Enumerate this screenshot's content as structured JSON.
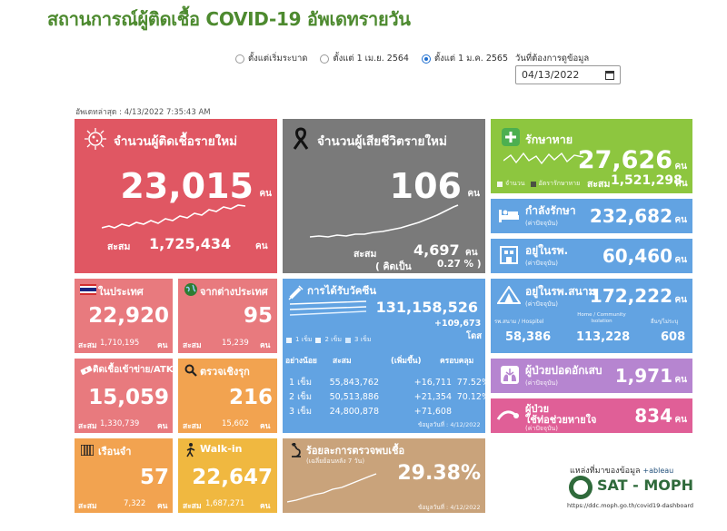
{
  "title": "สถานการณ์ผู้ติดเชื้อ COVID-19 อัพเดทรายวัน",
  "filters": {
    "options": [
      "ตั้งแต่เริ่มระบาด",
      "ตั้งแต่ 1 เม.ย. 2564",
      "ตั้งแต่ 1 ม.ค. 2565"
    ],
    "selected_index": 2,
    "date_label": "วันที่ต้องการดูข้อมูล",
    "date_value": "04/13/2022"
  },
  "updated": "อัพเดทล่าสุด : 4/13/2022 7:35:43 AM",
  "new_cases": {
    "label": "จำนวนผู้ติดเชื้อรายใหม่",
    "value": "23,015",
    "unit": "คน",
    "cum_label": "สะสม",
    "cum_value": "1,725,434",
    "cum_unit": "คน"
  },
  "new_deaths": {
    "label": "จำนวนผู้เสียชีวิตรายใหม่",
    "value": "106",
    "unit": "คน",
    "cum_label": "สะสม",
    "cum_value": "4,697",
    "cum_unit": "คน",
    "pct_prefix": "( คิดเป็น",
    "pct_value": "0.27 % )"
  },
  "recovered": {
    "label": "รักษาหาย",
    "value": "27,626",
    "unit": "คน",
    "legend_count": "จำนวน",
    "legend_rate": "อัตรารักษาหาย",
    "cum_label": "สะสม",
    "cum_value": "1,521,298",
    "cum_unit": "คน"
  },
  "treating": {
    "label": "กำลังรักษา",
    "sub": "(ค่าปัจจุบัน)",
    "value": "232,682",
    "unit": "คน"
  },
  "hospital": {
    "label": "อยู่ในรพ.",
    "sub": "(ค่าปัจจุบัน)",
    "value": "60,460",
    "unit": "คน"
  },
  "field_hospital": {
    "label": "อยู่ในรพ.สนาม",
    "sub": "(ค่าปัจจุบัน)",
    "value": "172,222",
    "unit": "คน",
    "col1_label": "รพ.สนาม / Hospitel",
    "col1_value": "58,386",
    "col2_label": "Home / Community Isolation",
    "col2_value": "113,228",
    "col3_label": "อื่นๆ/ไม่ระบุ",
    "col3_value": "608"
  },
  "severe": {
    "label": "ผู้ป่วยปอดอักเสบ",
    "sub": "(ค่าปัจจุบัน)",
    "value": "1,971",
    "unit": "คน"
  },
  "ventilator": {
    "label": "ผู้ป่วย",
    "label2": "ใช้ท่อช่วยหายใจ",
    "sub": "(ค่าปัจจุบัน)",
    "value": "834",
    "unit": "คน"
  },
  "domestic": {
    "label": "ในประเทศ",
    "value": "22,920",
    "cum_label": "สะสม",
    "cum_value": "1,710,195",
    "cum_unit": "คน"
  },
  "imported": {
    "label": "จากต่างประเทศ",
    "value": "95",
    "cum_label": "สะสม",
    "cum_value": "15,239",
    "cum_unit": "คน"
  },
  "atk": {
    "label": "ติดเชื้อเข้าข่าย/ATK",
    "value": "15,059",
    "cum_label": "สะสม",
    "cum_value": "1,330,739",
    "cum_unit": "คน"
  },
  "proactive": {
    "label": "ตรวจเชิงรุก",
    "value": "216",
    "cum_label": "สะสม",
    "cum_value": "15,602",
    "cum_unit": "คน"
  },
  "prison": {
    "label": "เรือนจำ",
    "value": "57",
    "cum_label": "สะสม",
    "cum_value": "7,322",
    "cum_unit": "คน"
  },
  "walkin": {
    "label": "Walk-in",
    "value": "22,647",
    "cum_label": "สะสม",
    "cum_value": "1,687,271",
    "cum_unit": "คน"
  },
  "vaccine": {
    "label": "การได้รับวัคซีน",
    "total": "131,158,526",
    "added": "+109,673",
    "unit": "โดส",
    "legend": [
      "1 เข็ม",
      "2 เข็ม",
      "3 เข็ม"
    ],
    "headers": [
      "อย่างน้อย",
      "สะสม",
      "(เพิ่มขึ้น)",
      "ครอบคลุม"
    ],
    "rows": [
      {
        "dose": "1 เข็ม",
        "cum": "55,843,762",
        "inc": "+16,711",
        "cov": "77.52%"
      },
      {
        "dose": "2 เข็ม",
        "cum": "50,513,886",
        "inc": "+21,354",
        "cov": "70.12%"
      },
      {
        "dose": "3 เข็ม",
        "cum": "24,800,878",
        "inc": "+71,608",
        "cov": ""
      }
    ],
    "data_date": "ข้อมูลวันที่ : 4/12/2022"
  },
  "positivity": {
    "label": "ร้อยละการตรวจพบเชื้อ",
    "sub": "(เฉลี่ยย้อนหลัง 7 วัน)",
    "value": "29.38%",
    "data_date": "ข้อมูลวันที่ : 4/12/2022"
  },
  "source": {
    "label": "แหล่งที่มาของข้อมูล",
    "tableau": "+ableau",
    "name": "SAT - MOPH",
    "url": "https://ddc.moph.go.th/covid19-dashboard"
  }
}
